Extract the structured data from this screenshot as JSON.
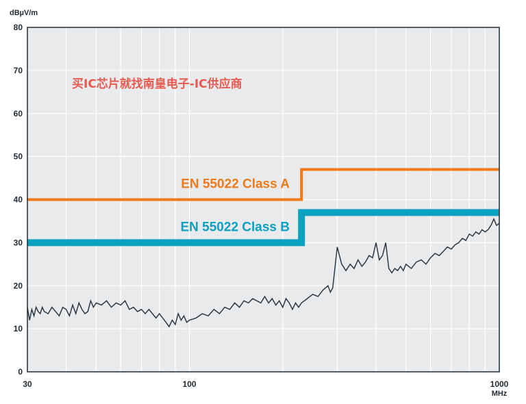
{
  "watermark": "买IC芯片就找南皇电子-IC供应商",
  "chart_data": {
    "type": "line",
    "xscale": "log",
    "xlim": [
      30,
      1000
    ],
    "ylim": [
      0,
      80
    ],
    "ylabel": "dBµV/m",
    "xunit": "MHz",
    "grid": true,
    "y_ticks": [
      0,
      10,
      20,
      30,
      40,
      50,
      60,
      70,
      80
    ],
    "x_tick_labels": [
      {
        "value": 30,
        "label": "30"
      },
      {
        "value": 100,
        "label": "100"
      },
      {
        "value": 1000,
        "label": "1000"
      }
    ],
    "x_gridlines": [
      40,
      50,
      60,
      70,
      80,
      90,
      100,
      200,
      300,
      400,
      500,
      600,
      700,
      800,
      900
    ],
    "colors": {
      "background": "#e9eaeb",
      "grid": "#ffffff",
      "axis": "#1f2a33",
      "class_a": "#f07a1a",
      "class_b": "#0aa0bf",
      "measurement": "#2b3a46",
      "watermark": "#e85a50"
    },
    "series": [
      {
        "name": "EN 55022 Class A",
        "style": "limit",
        "x": [
          30,
          230,
          230,
          1000
        ],
        "y": [
          40,
          40,
          47,
          47
        ]
      },
      {
        "name": "EN 55022 Class B",
        "style": "limit",
        "x": [
          30,
          230,
          230,
          1000
        ],
        "y": [
          30,
          30,
          37,
          37
        ]
      },
      {
        "style": "measurement",
        "x": [
          30,
          30.5,
          31,
          31.5,
          32,
          32.5,
          33,
          33.5,
          34,
          35,
          36,
          37,
          38,
          39,
          40,
          41,
          42,
          43,
          44,
          45,
          46,
          47,
          48,
          49,
          50,
          52,
          54,
          56,
          58,
          60,
          62,
          64,
          66,
          68,
          70,
          72,
          74,
          76,
          78,
          80,
          82,
          84,
          86,
          88,
          90,
          92,
          94,
          96,
          98,
          100,
          105,
          110,
          115,
          120,
          125,
          130,
          135,
          140,
          145,
          150,
          155,
          160,
          165,
          170,
          175,
          180,
          185,
          190,
          195,
          200,
          205,
          210,
          215,
          220,
          225,
          230,
          240,
          250,
          260,
          270,
          280,
          285,
          290,
          300,
          310,
          320,
          330,
          340,
          350,
          360,
          370,
          380,
          390,
          400,
          410,
          420,
          430,
          440,
          450,
          460,
          470,
          480,
          490,
          500,
          520,
          540,
          560,
          580,
          600,
          620,
          640,
          660,
          680,
          700,
          720,
          740,
          760,
          780,
          800,
          820,
          840,
          860,
          880,
          900,
          920,
          940,
          960,
          980,
          1000
        ],
        "y": [
          15,
          12,
          14.5,
          13,
          15,
          14,
          13.5,
          15,
          14,
          13.5,
          15,
          14,
          13,
          15,
          14.5,
          13,
          15.5,
          13.5,
          16,
          14.5,
          13.5,
          14,
          16.5,
          15,
          16,
          15.5,
          16.5,
          15,
          16,
          15.5,
          16.5,
          14.5,
          15,
          14,
          14.5,
          13.5,
          14.5,
          13.5,
          12.5,
          13.5,
          12.5,
          11.5,
          10.5,
          12,
          11,
          13.5,
          12,
          13,
          11.5,
          12,
          12.5,
          13.5,
          13,
          14.5,
          13.5,
          15,
          14.5,
          16,
          15,
          16.5,
          16,
          17,
          16.5,
          16,
          17.5,
          16,
          17,
          15.5,
          16.5,
          15,
          17,
          16,
          14.5,
          16,
          15,
          16,
          17,
          18,
          17.5,
          19,
          20,
          18.5,
          19.5,
          29,
          25,
          23.5,
          25,
          24,
          26,
          24.5,
          25.5,
          27,
          26.5,
          30,
          26,
          27,
          30,
          24,
          23,
          24,
          23.5,
          24.5,
          23.5,
          25,
          24,
          25.5,
          26,
          25,
          26.5,
          27.5,
          27,
          28,
          29,
          28.5,
          29.5,
          30,
          31,
          30.5,
          32,
          31.5,
          32.5,
          32,
          33,
          32.5,
          33,
          34,
          35.5,
          34,
          34.5
        ]
      }
    ]
  }
}
